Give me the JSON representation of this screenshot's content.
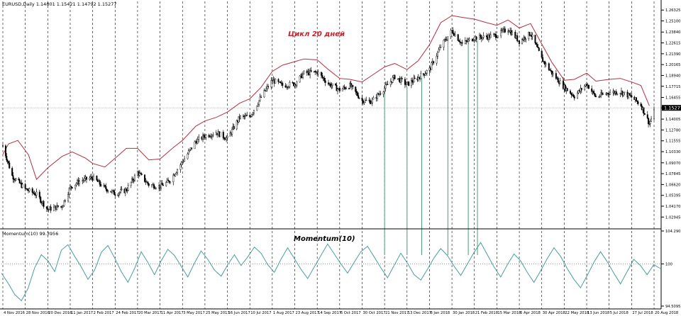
{
  "main_panel": {
    "symbol_header": "EURUSD,Daily  1.14801 1.15421 1.14792 1.15277",
    "annotation": "Цикл 20 дней",
    "current_price_label": "1.15277"
  },
  "momentum_panel": {
    "header": "Momentum(10) 99.3956",
    "title": "Momentum(10)",
    "level_label": "100"
  },
  "chart_data": [
    {
      "type": "candlestick",
      "title": "EURUSD,Daily",
      "ohlc_header": {
        "open": 1.14801,
        "high": 1.15421,
        "low": 1.14792,
        "close": 1.15277
      },
      "current_price": 1.15277,
      "ylim": [
        1.0185,
        1.265
      ],
      "y_ticks": [
        "1.26325",
        "1.25100",
        "1.23840",
        "1.22615",
        "1.21390",
        "1.20165",
        "1.18940",
        "1.17715",
        "1.16455",
        "1.15277",
        "1.14005",
        "1.12780",
        "1.11555",
        "1.10330",
        "1.09070",
        "1.07845",
        "1.06620",
        "1.05395",
        "1.04170",
        "1.02945"
      ],
      "x_ticks": [
        "4 Nov 2016",
        "28 Nov 2016",
        "20 Dec 2016",
        "11 Jan 2017",
        "2 Feb 2017",
        "24 Feb 2017",
        "20 Mar 2017",
        "11 Apr 2017",
        "3 May 2017",
        "25 May 2017",
        "16 Jun 2017",
        "10 Jul 2017",
        "1 Aug 2017",
        "23 Aug 2017",
        "14 Sep 2017",
        "6 Oct 2017",
        "30 Oct 2017",
        "21 Nov 2017",
        "13 Dec 2017",
        "8 Jan 2018",
        "30 Jan 2018",
        "21 Feb 2018",
        "15 Mar 2018",
        "6 Apr 2018",
        "30 Apr 2018",
        "22 May 2018",
        "13 Jun 2018",
        "5 Jul 2018",
        "27 Jul 2018",
        "20 Aug 2018"
      ],
      "close_path": [
        {
          "date": "4 Nov 2016",
          "close": 1.11
        },
        {
          "date": "14 Nov 2016",
          "close": 1.076
        },
        {
          "date": "28 Nov 2016",
          "close": 1.061
        },
        {
          "date": "9 Dec 2016",
          "close": 1.055
        },
        {
          "date": "20 Dec 2016",
          "close": 1.038
        },
        {
          "date": "3 Jan 2017",
          "close": 1.042
        },
        {
          "date": "11 Jan 2017",
          "close": 1.063
        },
        {
          "date": "20 Jan 2017",
          "close": 1.07
        },
        {
          "date": "2 Feb 2017",
          "close": 1.074
        },
        {
          "date": "14 Feb 2017",
          "close": 1.062
        },
        {
          "date": "24 Feb 2017",
          "close": 1.056
        },
        {
          "date": "8 Mar 2017",
          "close": 1.06
        },
        {
          "date": "20 Mar 2017",
          "close": 1.08
        },
        {
          "date": "31 Mar 2017",
          "close": 1.066
        },
        {
          "date": "11 Apr 2017",
          "close": 1.064
        },
        {
          "date": "20 Apr 2017",
          "close": 1.07
        },
        {
          "date": "3 May 2017",
          "close": 1.092
        },
        {
          "date": "16 May 2017",
          "close": 1.115
        },
        {
          "date": "25 May 2017",
          "close": 1.121
        },
        {
          "date": "5 Jun 2017",
          "close": 1.125
        },
        {
          "date": "16 Jun 2017",
          "close": 1.118
        },
        {
          "date": "29 Jun 2017",
          "close": 1.142
        },
        {
          "date": "10 Jul 2017",
          "close": 1.143
        },
        {
          "date": "21 Jul 2017",
          "close": 1.165
        },
        {
          "date": "1 Aug 2017",
          "close": 1.184
        },
        {
          "date": "11 Aug 2017",
          "close": 1.178
        },
        {
          "date": "23 Aug 2017",
          "close": 1.18
        },
        {
          "date": "1 Sep 2017",
          "close": 1.192
        },
        {
          "date": "14 Sep 2017",
          "close": 1.193
        },
        {
          "date": "25 Sep 2017",
          "close": 1.18
        },
        {
          "date": "6 Oct 2017",
          "close": 1.173
        },
        {
          "date": "17 Oct 2017",
          "close": 1.178
        },
        {
          "date": "30 Oct 2017",
          "close": 1.161
        },
        {
          "date": "8 Nov 2017",
          "close": 1.16
        },
        {
          "date": "21 Nov 2017",
          "close": 1.175
        },
        {
          "date": "1 Dec 2017",
          "close": 1.188
        },
        {
          "date": "13 Dec 2017",
          "close": 1.179
        },
        {
          "date": "26 Dec 2017",
          "close": 1.187
        },
        {
          "date": "8 Jan 2018",
          "close": 1.196
        },
        {
          "date": "19 Jan 2018",
          "close": 1.222
        },
        {
          "date": "30 Jan 2018",
          "close": 1.24
        },
        {
          "date": "9 Feb 2018",
          "close": 1.225
        },
        {
          "date": "21 Feb 2018",
          "close": 1.232
        },
        {
          "date": "5 Mar 2018",
          "close": 1.233
        },
        {
          "date": "15 Mar 2018",
          "close": 1.235
        },
        {
          "date": "26 Mar 2018",
          "close": 1.242
        },
        {
          "date": "6 Apr 2018",
          "close": 1.228
        },
        {
          "date": "18 Apr 2018",
          "close": 1.237
        },
        {
          "date": "30 Apr 2018",
          "close": 1.208
        },
        {
          "date": "10 May 2018",
          "close": 1.192
        },
        {
          "date": "22 May 2018",
          "close": 1.176
        },
        {
          "date": "1 Jun 2018",
          "close": 1.166
        },
        {
          "date": "13 Jun 2018",
          "close": 1.18
        },
        {
          "date": "22 Jun 2018",
          "close": 1.165
        },
        {
          "date": "5 Jul 2018",
          "close": 1.17
        },
        {
          "date": "16 Jul 2018",
          "close": 1.171
        },
        {
          "date": "27 Jul 2018",
          "close": 1.165
        },
        {
          "date": "6 Aug 2018",
          "close": 1.156
        },
        {
          "date": "15 Aug 2018",
          "close": 1.135
        },
        {
          "date": "20 Aug 2018",
          "close": 1.148
        }
      ],
      "cycle_envelope": [
        {
          "date": "4 Nov 2016",
          "value": 1.1
        },
        {
          "date": "10 Nov 2016",
          "value": 1.112
        },
        {
          "date": "20 Nov 2016",
          "value": 1.116
        },
        {
          "date": "1 Dec 2016",
          "value": 1.1
        },
        {
          "date": "9 Dec 2016",
          "value": 1.072
        },
        {
          "date": "20 Dec 2016",
          "value": 1.085
        },
        {
          "date": "3 Jan 2017",
          "value": 1.098
        },
        {
          "date": "13 Jan 2017",
          "value": 1.103
        },
        {
          "date": "26 Jan 2017",
          "value": 1.096
        },
        {
          "date": "2 Feb 2017",
          "value": 1.09
        },
        {
          "date": "14 Feb 2017",
          "value": 1.086
        },
        {
          "date": "24 Feb 2017",
          "value": 1.096
        },
        {
          "date": "8 Mar 2017",
          "value": 1.107
        },
        {
          "date": "20 Mar 2017",
          "value": 1.107
        },
        {
          "date": "31 Mar 2017",
          "value": 1.094
        },
        {
          "date": "11 Apr 2017",
          "value": 1.095
        },
        {
          "date": "24 Apr 2017",
          "value": 1.108
        },
        {
          "date": "3 May 2017",
          "value": 1.116
        },
        {
          "date": "16 May 2017",
          "value": 1.132
        },
        {
          "date": "25 May 2017",
          "value": 1.138
        },
        {
          "date": "5 Jun 2017",
          "value": 1.142
        },
        {
          "date": "16 Jun 2017",
          "value": 1.148
        },
        {
          "date": "29 Jun 2017",
          "value": 1.158
        },
        {
          "date": "10 Jul 2017",
          "value": 1.163
        },
        {
          "date": "21 Jul 2017",
          "value": 1.176
        },
        {
          "date": "1 Aug 2017",
          "value": 1.194
        },
        {
          "date": "11 Aug 2017",
          "value": 1.201
        },
        {
          "date": "23 Aug 2017",
          "value": 1.205
        },
        {
          "date": "1 Sep 2017",
          "value": 1.208
        },
        {
          "date": "14 Sep 2017",
          "value": 1.207
        },
        {
          "date": "25 Sep 2017",
          "value": 1.196
        },
        {
          "date": "6 Oct 2017",
          "value": 1.186
        },
        {
          "date": "17 Oct 2017",
          "value": 1.185
        },
        {
          "date": "30 Oct 2017",
          "value": 1.182
        },
        {
          "date": "8 Nov 2017",
          "value": 1.189
        },
        {
          "date": "21 Nov 2017",
          "value": 1.199
        },
        {
          "date": "1 Dec 2017",
          "value": 1.203
        },
        {
          "date": "13 Dec 2017",
          "value": 1.196
        },
        {
          "date": "26 Dec 2017",
          "value": 1.206
        },
        {
          "date": "8 Jan 2018",
          "value": 1.224
        },
        {
          "date": "19 Jan 2018",
          "value": 1.249
        },
        {
          "date": "30 Jan 2018",
          "value": 1.257
        },
        {
          "date": "9 Feb 2018",
          "value": 1.255
        },
        {
          "date": "21 Feb 2018",
          "value": 1.253
        },
        {
          "date": "5 Mar 2018",
          "value": 1.249
        },
        {
          "date": "15 Mar 2018",
          "value": 1.246
        },
        {
          "date": "26 Mar 2018",
          "value": 1.252
        },
        {
          "date": "6 Apr 2018",
          "value": 1.243
        },
        {
          "date": "18 Apr 2018",
          "value": 1.248
        },
        {
          "date": "30 Apr 2018",
          "value": 1.225
        },
        {
          "date": "10 May 2018",
          "value": 1.204
        },
        {
          "date": "22 May 2018",
          "value": 1.184
        },
        {
          "date": "1 Jun 2018",
          "value": 1.185
        },
        {
          "date": "13 Jun 2018",
          "value": 1.192
        },
        {
          "date": "22 Jun 2018",
          "value": 1.183
        },
        {
          "date": "5 Jul 2018",
          "value": 1.185
        },
        {
          "date": "16 Jul 2018",
          "value": 1.186
        },
        {
          "date": "27 Jul 2018",
          "value": 1.182
        },
        {
          "date": "6 Aug 2018",
          "value": 1.178
        },
        {
          "date": "15 Aug 2018",
          "value": 1.155
        }
      ],
      "cycle_marker_dates": [
        "21 Nov 2017",
        "13 Dec 2017",
        "30 Dec 2017",
        "26 Jan 2018",
        "15 Feb 2018",
        "24 Feb 2018"
      ],
      "colors": {
        "candles": "#000000",
        "envelope": "#b3303f",
        "grid": "#000000",
        "price_line": "#bdbdbd",
        "markers": "#4a9e7a"
      }
    },
    {
      "type": "line",
      "title": "Momentum(10)",
      "last_value": 99.3956,
      "ylim": [
        94.5095,
        104.2905
      ],
      "y_ticks": [
        "104.2905",
        "100",
        "94.5095"
      ],
      "reference_level": 100,
      "series": [
        {
          "name": "Momentum(10)",
          "values": [
            98.8,
            97.5,
            96.0,
            95.2,
            96.8,
            99.5,
            101.2,
            100.4,
            99.0,
            101.8,
            102.5,
            101.0,
            99.6,
            98.0,
            99.2,
            101.5,
            102.4,
            100.8,
            99.0,
            97.6,
            99.4,
            101.6,
            100.2,
            98.6,
            100.4,
            101.9,
            101.1,
            99.7,
            98.3,
            100.1,
            101.7,
            100.6,
            99.2,
            98.4,
            99.9,
            101.2,
            99.8,
            100.9,
            102.2,
            101.4,
            99.9,
            98.9,
            100.6,
            102.1,
            100.7,
            99.3,
            98.1,
            99.6,
            101.1,
            102.6,
            101.3,
            100.0,
            98.8,
            100.2,
            101.6,
            102.3,
            100.9,
            99.5,
            98.2,
            99.8,
            101.4,
            100.1,
            98.6,
            97.9,
            99.3,
            100.8,
            102.0,
            101.1,
            99.7,
            98.5,
            100.0,
            101.5,
            102.8,
            101.2,
            99.6,
            98.3,
            99.9,
            101.3,
            100.4,
            98.9,
            97.6,
            99.1,
            100.7,
            102.1,
            101.0,
            99.4,
            98.0,
            96.9,
            98.5,
            100.2,
            101.6,
            100.3,
            98.8,
            97.4,
            99.0,
            100.6,
            99.8,
            98.6,
            99.9,
            99.4
          ]
        }
      ],
      "colors": {
        "line": "#4a9e9e",
        "level": "#888888"
      }
    }
  ]
}
